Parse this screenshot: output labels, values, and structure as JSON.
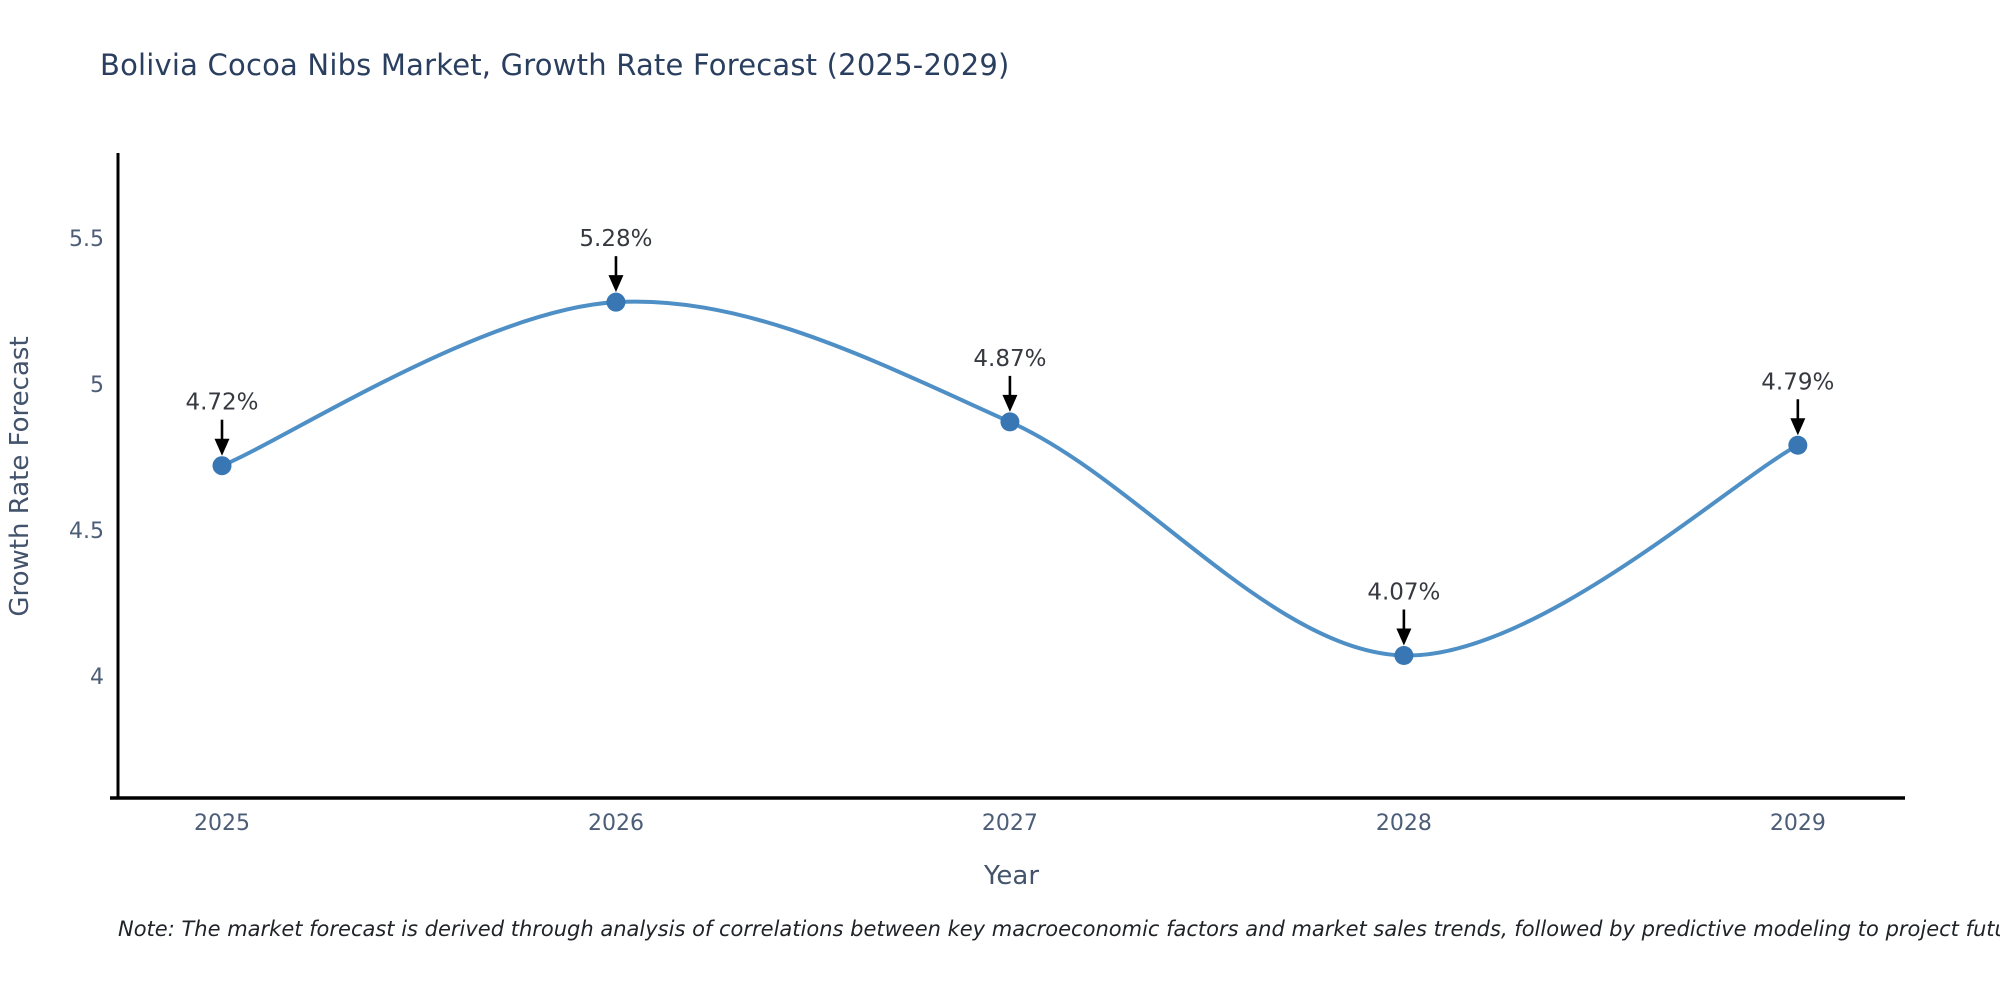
{
  "title": "Bolivia Cocoa Nibs Market, Growth Rate Forecast (2025-2029)",
  "note": "Note: The market forecast is derived through analysis of correlations between key macroeconomic factors and market sales trends, followed by predictive modeling to project future sales",
  "chart_data": {
    "type": "line",
    "title": "Bolivia Cocoa Nibs Market, Growth Rate Forecast (2025-2029)",
    "x": [
      2025,
      2026,
      2027,
      2028,
      2029
    ],
    "y": [
      4.72,
      5.28,
      4.87,
      4.07,
      4.79
    ],
    "point_labels": [
      "4.72%",
      "5.28%",
      "4.87%",
      "4.07%",
      "4.79%"
    ],
    "xlabel": "Year",
    "ylabel": "Growth Rate Forecast",
    "xticks": [
      2025,
      2026,
      2027,
      2028,
      2029
    ],
    "yticks": [
      4,
      4.5,
      5,
      5.5
    ],
    "xlim": [
      2024.736,
      2029.272
    ],
    "ylim": [
      3.582,
      5.784
    ],
    "line_shape": "spline",
    "markers": true,
    "grid": false,
    "legend": "none",
    "annotations_arrow": true,
    "colors": {
      "line": "#4e8fc6",
      "marker": "#3876b4",
      "axis": "#000000",
      "title": "#2a3f5f",
      "tick_label": "#4c5d78",
      "axis_title": "#42536b",
      "annotation": "#36393f",
      "note": "#1f2328",
      "background": "#ffffff"
    }
  }
}
